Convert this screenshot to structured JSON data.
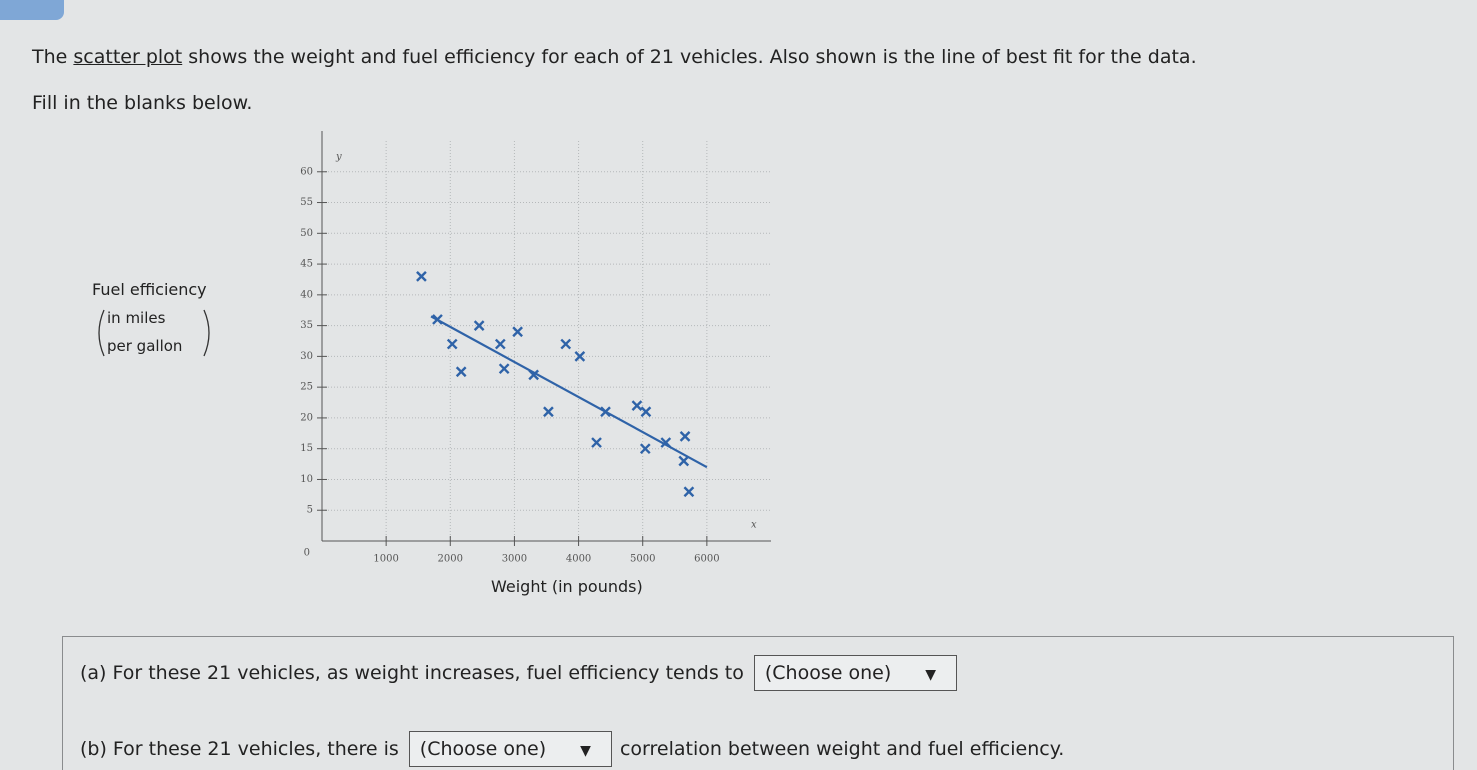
{
  "intro": {
    "before": "The",
    "link": "scatter plot",
    "after": "shows the weight and fuel efficiency for each of 21 vehicles. Also shown is the line of best fit for the data."
  },
  "instruction": "Fill in the blanks below.",
  "chart_data": {
    "type": "scatter",
    "x_axis_label": "Weight (in pounds)",
    "y_axis_label": {
      "title": "Fuel efficiency",
      "line1": "in miles",
      "line2": "per gallon"
    },
    "x_var": "x",
    "y_var": "y",
    "x": [
      1550,
      1800,
      2450,
      3050,
      2030,
      2780,
      3800,
      4020,
      2170,
      2840,
      3300,
      3530,
      4420,
      4910,
      5050,
      4280,
      5040,
      5360,
      5660,
      5640,
      5720
    ],
    "y": [
      43,
      36,
      35,
      34,
      32,
      32,
      32,
      30,
      27.5,
      28,
      27,
      21,
      21,
      22,
      21,
      16,
      15,
      16,
      17,
      13,
      8
    ],
    "color": "#2f63a8",
    "best_fit": {
      "x": [
        1700,
        6000
      ],
      "y": [
        36.5,
        12
      ]
    },
    "xlim": [
      0,
      7000
    ],
    "ylim": [
      0,
      65
    ],
    "xticks": [
      1000,
      2000,
      3000,
      4000,
      5000,
      6000
    ],
    "yticks": [
      0,
      5,
      10,
      15,
      20,
      25,
      30,
      35,
      40,
      45,
      50,
      55,
      60
    ],
    "grid": true
  },
  "questions": [
    {
      "label": "(a)",
      "before": "For these 21 vehicles, as weight increases, fuel efficiency tends to",
      "dropdown": "(Choose one)"
    },
    {
      "label": "(b)",
      "before": "For these 21 vehicles, there is",
      "dropdown": "(Choose one)",
      "after": "correlation between weight and fuel efficiency."
    }
  ]
}
